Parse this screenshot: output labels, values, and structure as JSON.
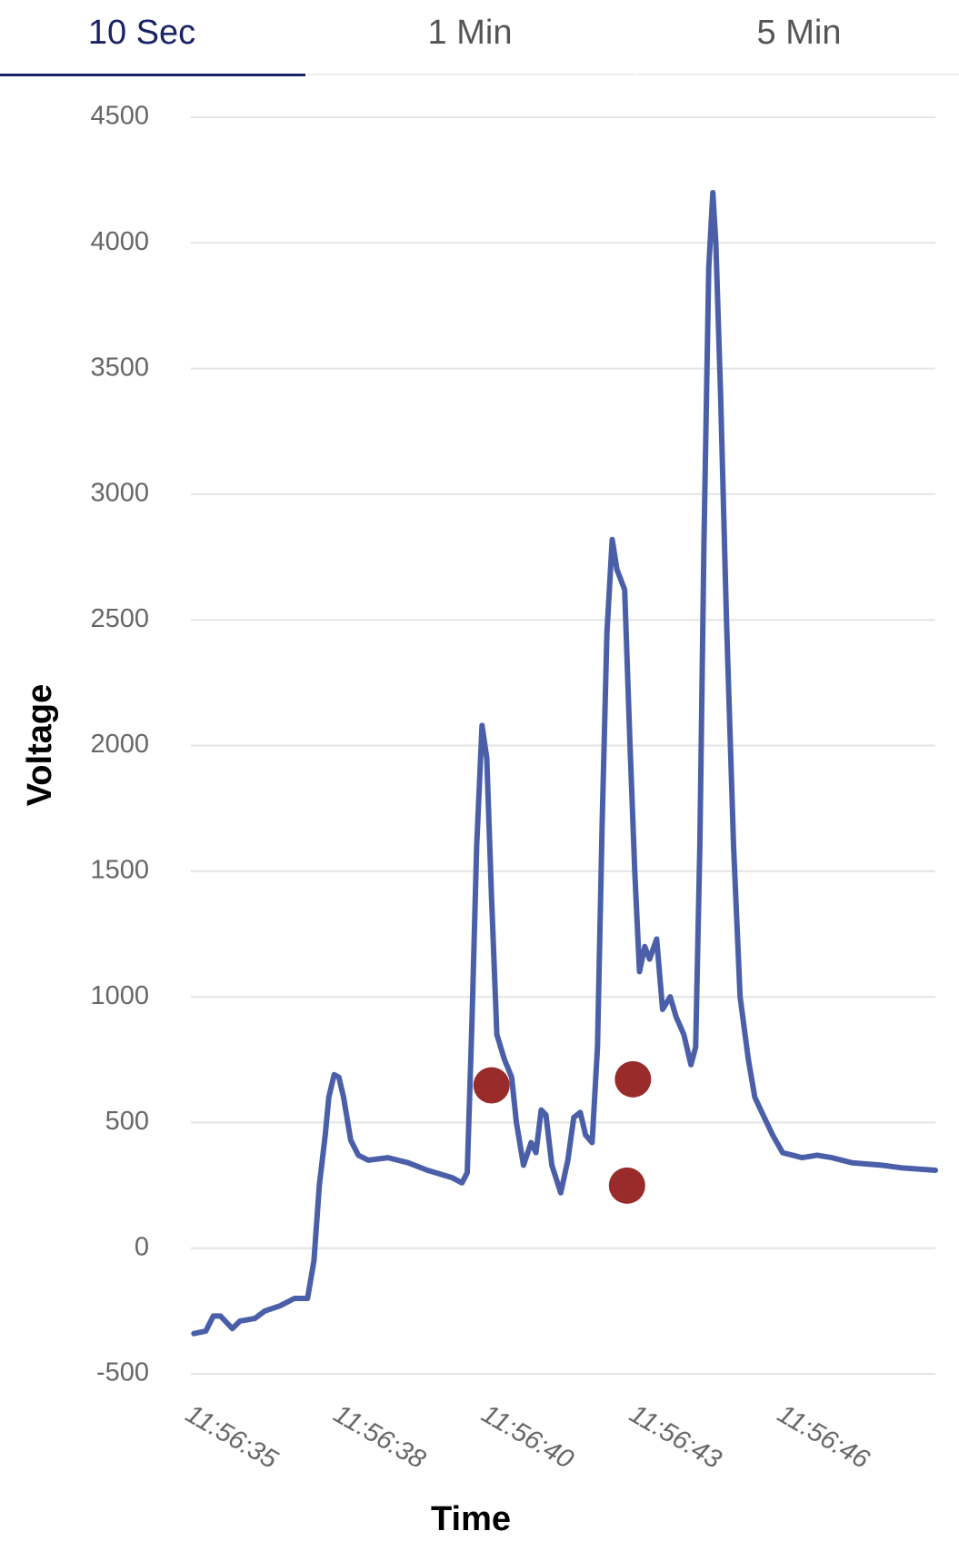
{
  "tabs": [
    "10 Sec",
    "1 Min",
    "5 Min"
  ],
  "chart_data": {
    "type": "line",
    "xlabel": "Time",
    "ylabel": "Voltage",
    "xlim": [
      0,
      12.58
    ],
    "ylim": [
      -500,
      4500
    ],
    "yticks": [
      -500,
      0,
      500,
      1000,
      1500,
      2000,
      2500,
      3000,
      3500,
      4000,
      4500
    ],
    "xticks": [
      {
        "value": 0,
        "label": "11:56:35"
      },
      {
        "value": 2.5,
        "label": "11:56:38"
      },
      {
        "value": 5,
        "label": "11:56:40"
      },
      {
        "value": 7.5,
        "label": "11:56:43"
      },
      {
        "value": 10,
        "label": "11:56:46"
      }
    ],
    "grid": true,
    "series": [
      {
        "color": "#4a5fa8",
        "x": [
          0.05,
          0.25,
          0.38,
          0.5,
          0.7,
          0.83,
          1.08,
          1.25,
          1.5,
          1.75,
          1.97,
          2.08,
          2.17,
          2.27,
          2.33,
          2.42,
          2.5,
          2.58,
          2.7,
          2.83,
          3.0,
          3.33,
          3.67,
          4.0,
          4.42,
          4.58,
          4.67,
          4.75,
          4.83,
          4.92,
          5.0,
          5.08,
          5.17,
          5.3,
          5.42,
          5.5,
          5.62,
          5.75,
          5.83,
          5.92,
          6.0,
          6.1,
          6.25,
          6.37,
          6.47,
          6.58,
          6.67,
          6.78,
          6.87,
          6.95,
          7.03,
          7.12,
          7.2,
          7.33,
          7.42,
          7.5,
          7.58,
          7.67,
          7.75,
          7.87,
          7.97,
          8.1,
          8.2,
          8.33,
          8.45,
          8.53,
          8.6,
          8.67,
          8.75,
          8.82,
          8.87,
          8.95,
          9.05,
          9.17,
          9.28,
          9.42,
          9.53,
          9.67,
          9.83,
          10.0,
          10.33,
          10.58,
          10.83,
          11.17,
          11.67,
          12.0,
          12.58
        ],
        "values": [
          -340,
          -330,
          -270,
          -270,
          -320,
          -290,
          -280,
          -250,
          -230,
          -200,
          -200,
          -50,
          250,
          450,
          600,
          690,
          680,
          600,
          430,
          370,
          350,
          360,
          340,
          310,
          280,
          260,
          300,
          900,
          1600,
          2080,
          1950,
          1400,
          850,
          750,
          680,
          500,
          330,
          420,
          380,
          550,
          530,
          330,
          220,
          350,
          520,
          540,
          450,
          420,
          800,
          1700,
          2450,
          2820,
          2700,
          2620,
          2000,
          1500,
          1100,
          1200,
          1150,
          1230,
          950,
          1000,
          920,
          850,
          730,
          800,
          1600,
          2800,
          3900,
          4200,
          4000,
          3400,
          2500,
          1600,
          1000,
          750,
          600,
          530,
          450,
          380,
          360,
          370,
          360,
          340,
          330,
          320,
          310
        ]
      }
    ],
    "markers": {
      "color": "#992b2b",
      "x": [
        5.08,
        7.47,
        7.37
      ],
      "values": [
        648,
        672,
        249
      ]
    }
  }
}
